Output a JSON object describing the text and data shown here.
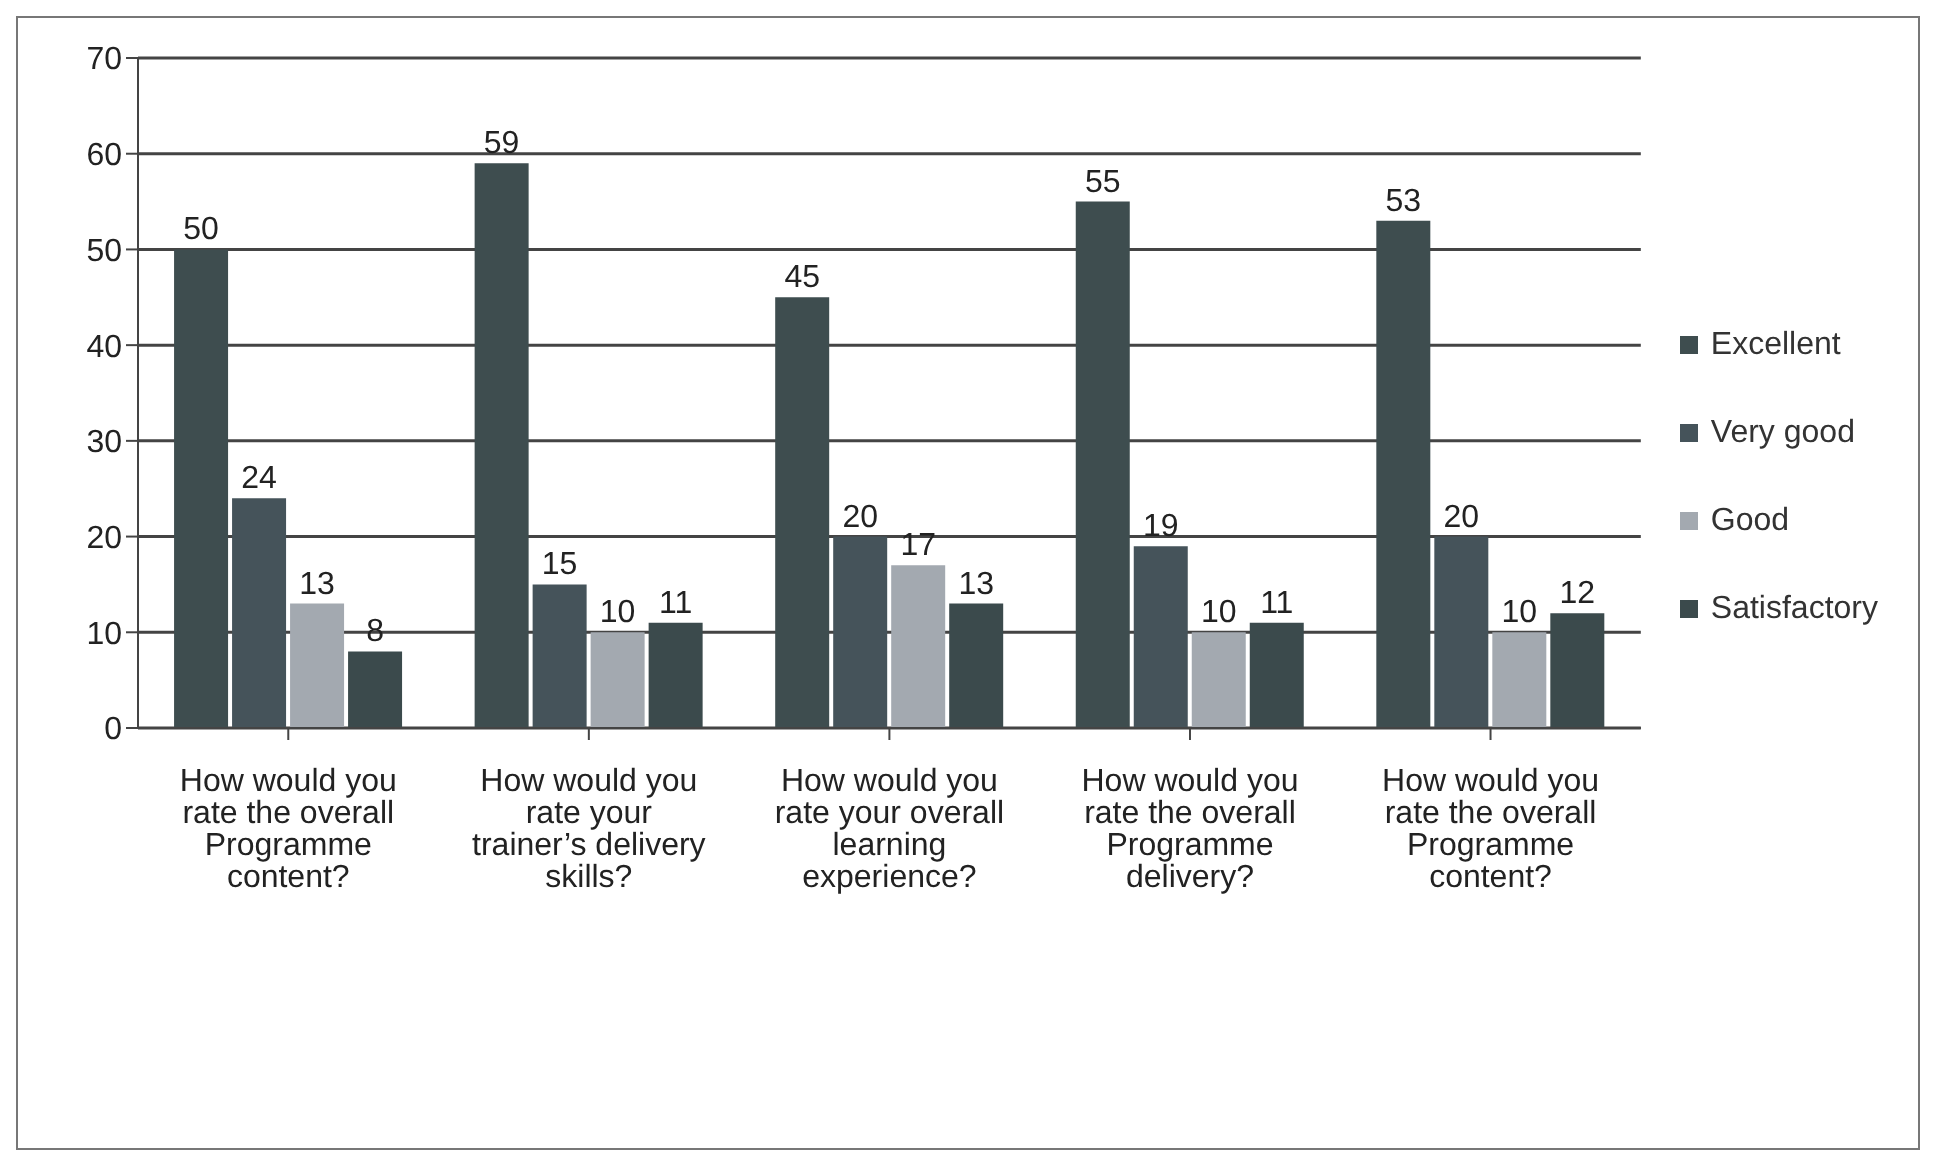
{
  "chart_data": {
    "type": "bar",
    "categories": [
      "How would you rate the overall Programme content?",
      "How would you rate your trainer’s delivery skills?",
      "How would you rate your overall learning experience?",
      "How would you rate the overall Programme delivery?",
      "How would you rate the overall Programme content?"
    ],
    "series": [
      {
        "name": "Excellent",
        "color": "#3e4d4f",
        "values": [
          50,
          59,
          45,
          55,
          53
        ]
      },
      {
        "name": "Very good",
        "color": "#45535a",
        "values": [
          24,
          15,
          20,
          19,
          20
        ]
      },
      {
        "name": "Good",
        "color": "#a3a9b0",
        "values": [
          13,
          10,
          17,
          10,
          10
        ]
      },
      {
        "name": "Satisfactory",
        "color": "#3b4a4c",
        "values": [
          8,
          11,
          13,
          11,
          12
        ]
      }
    ],
    "ylim": [
      0,
      70
    ],
    "yticks": [
      0,
      10,
      20,
      30,
      40,
      50,
      60,
      70
    ],
    "grid": "y",
    "legend": "right",
    "data_labels": true
  }
}
